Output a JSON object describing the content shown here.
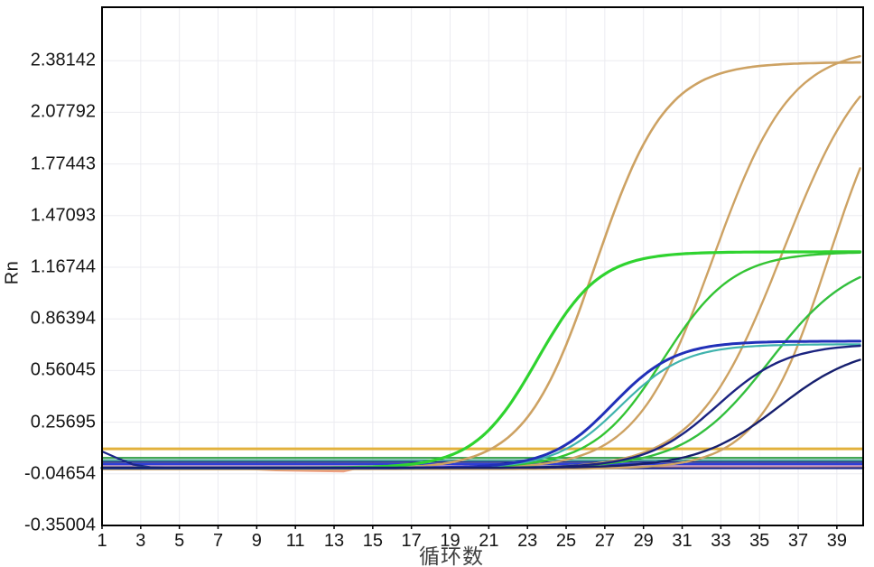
{
  "chart_data": {
    "type": "line",
    "title": "",
    "xlabel": "循环数",
    "ylabel": "Rn",
    "grid": true,
    "legend": "none",
    "x_range": [
      1,
      40.36
    ],
    "y_range": [
      -0.35004,
      2.69546
    ],
    "x_ticks": [
      1,
      3,
      5,
      7,
      9,
      11,
      13,
      15,
      17,
      19,
      21,
      23,
      25,
      27,
      29,
      31,
      33,
      35,
      37,
      39
    ],
    "y_ticks": [
      "2.38142",
      "2.07792",
      "1.77443",
      "1.47093",
      "1.16744",
      "0.86394",
      "0.56045",
      "0.25695",
      "-0.04654",
      "-0.35004"
    ],
    "series_model_note": "qPCR amplification curves, Rn vs cycle; logistic model value = baseline + plateau/(1+exp(-slope*(cycle-midpoint_cycle)))",
    "amplification_series": [
      {
        "name": "orange-1",
        "color": "#cda263",
        "width": 2.6,
        "model": "logistic",
        "baseline": -0.018,
        "plateau": 2.39,
        "slope": 0.55,
        "midpoint_cycle": 26.5,
        "threshold_crossing_cycle": 21.3,
        "end_value": 2.37
      },
      {
        "name": "orange-2",
        "color": "#cda263",
        "width": 2.4,
        "model": "logistic",
        "baseline": -0.018,
        "plateau": 2.48,
        "slope": 0.5,
        "midpoint_cycle": 32.6,
        "threshold_crossing_cycle": 26.0,
        "end_value": 2.43
      },
      {
        "name": "orange-3",
        "color": "#cda263",
        "width": 2.4,
        "model": "logistic",
        "baseline": -0.018,
        "plateau": 2.55,
        "slope": 0.45,
        "midpoint_cycle": 36.2,
        "threshold_crossing_cycle": 29.6,
        "end_value": 2.2
      },
      {
        "name": "orange-4",
        "color": "#cda263",
        "width": 2.4,
        "model": "logistic",
        "baseline": -0.018,
        "plateau": 2.5,
        "slope": 0.55,
        "midpoint_cycle": 38.6,
        "threshold_crossing_cycle": 33.3,
        "end_value": 1.78
      },
      {
        "name": "green-1",
        "color": "#2fd32f",
        "width": 3.2,
        "model": "logistic",
        "baseline": -0.012,
        "plateau": 1.27,
        "slope": 0.62,
        "midpoint_cycle": 23.5,
        "threshold_crossing_cycle": 19.8,
        "end_value": 1.26
      },
      {
        "name": "green-2",
        "color": "#33c433",
        "width": 2.4,
        "model": "logistic",
        "baseline": -0.012,
        "plateau": 1.27,
        "slope": 0.55,
        "midpoint_cycle": 30.0,
        "threshold_crossing_cycle": 25.8,
        "end_value": 1.25
      },
      {
        "name": "green-3",
        "color": "#33bf3e",
        "width": 2.4,
        "model": "logistic",
        "baseline": -0.012,
        "plateau": 1.25,
        "slope": 0.46,
        "midpoint_cycle": 35.5,
        "threshold_crossing_cycle": 30.5,
        "end_value": 1.11
      },
      {
        "name": "teal-1",
        "color": "#3fb3ad",
        "width": 2.2,
        "model": "logistic",
        "baseline": -0.015,
        "plateau": 0.73,
        "slope": 0.6,
        "midpoint_cycle": 27.8,
        "threshold_crossing_cycle": 25.0,
        "end_value": 0.71
      },
      {
        "name": "navy-1",
        "color": "#2130b8",
        "width": 3.0,
        "model": "logistic",
        "baseline": -0.012,
        "plateau": 0.745,
        "slope": 0.62,
        "midpoint_cycle": 27.4,
        "threshold_crossing_cycle": 24.6,
        "end_value": 0.73
      },
      {
        "name": "navy-2",
        "color": "#1b2380",
        "width": 2.4,
        "model": "logistic",
        "baseline": -0.012,
        "plateau": 0.73,
        "slope": 0.55,
        "midpoint_cycle": 32.8,
        "threshold_crossing_cycle": 29.7,
        "end_value": 0.7
      },
      {
        "name": "navy-3",
        "color": "#161f6e",
        "width": 2.4,
        "model": "logistic",
        "baseline": -0.012,
        "plateau": 0.72,
        "slope": 0.48,
        "midpoint_cycle": 36.0,
        "threshold_crossing_cycle": 32.5,
        "end_value": 0.64
      }
    ],
    "threshold_lines": [
      {
        "name": "threshold-gold",
        "color": "#e2b13c",
        "width": 3.0,
        "value": 0.1
      },
      {
        "name": "flat-green",
        "color": "#2f9e44",
        "width": 2.0,
        "value": 0.047
      },
      {
        "name": "flat-teal",
        "color": "#2e8f8f",
        "width": 1.8,
        "value": 0.033
      },
      {
        "name": "flat-navy",
        "color": "#1b2688",
        "width": 1.8,
        "value": 0.022
      },
      {
        "name": "flat-royal-blue",
        "color": "#2e3ed6",
        "width": 2.2,
        "value": 0.01
      },
      {
        "name": "flat-purple",
        "color": "#b18cc6",
        "width": 2.2,
        "value": -0.001
      }
    ],
    "baseline_series": [
      {
        "name": "salmon-baseline",
        "color": "#eda083",
        "width": 2.6,
        "points": [
          [
            1,
            -0.008
          ],
          [
            7,
            -0.01
          ],
          [
            8,
            -0.014
          ],
          [
            10,
            -0.025
          ],
          [
            12,
            -0.029
          ],
          [
            13.5,
            -0.031
          ],
          [
            14.2,
            -0.013
          ],
          [
            16,
            -0.011
          ],
          [
            40.36,
            -0.01
          ]
        ]
      },
      {
        "name": "navy-start-dip",
        "color": "#1b2688",
        "width": 2.2,
        "points": [
          [
            1,
            0.085
          ],
          [
            1.8,
            0.045
          ],
          [
            2.6,
            0.008
          ],
          [
            3.5,
            -0.008
          ],
          [
            5,
            -0.014
          ],
          [
            9,
            -0.015
          ],
          [
            40.36,
            -0.013
          ]
        ]
      }
    ],
    "colors": {
      "plot_border": "#000000",
      "grid": "#ebebf0",
      "axis_text": "#141414",
      "xlabel_text": "#3f3f3f"
    }
  }
}
